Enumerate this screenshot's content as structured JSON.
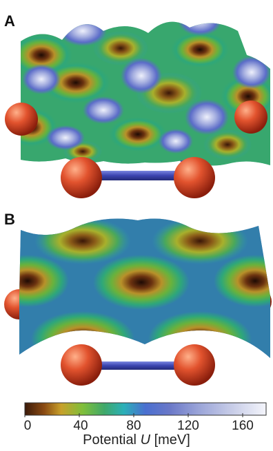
{
  "panels": {
    "a": {
      "label": "A"
    },
    "b": {
      "label": "B"
    }
  },
  "colorbar": {
    "ticks": [
      "0",
      "40",
      "80",
      "120",
      "160"
    ],
    "label_prefix": "Potential ",
    "label_variable": "U",
    "label_unit": " [meV]",
    "colors": [
      "#3b1a0a",
      "#8a4a12",
      "#c8a02a",
      "#7fbf3a",
      "#3fa86a",
      "#2bb0b8",
      "#4a6fd0",
      "#6a78c8",
      "#9aa4d8",
      "#c8cde8",
      "#f4f5fb"
    ]
  },
  "atoms": {
    "color": "#d5452a",
    "bond_color": "#3f47b8"
  }
}
